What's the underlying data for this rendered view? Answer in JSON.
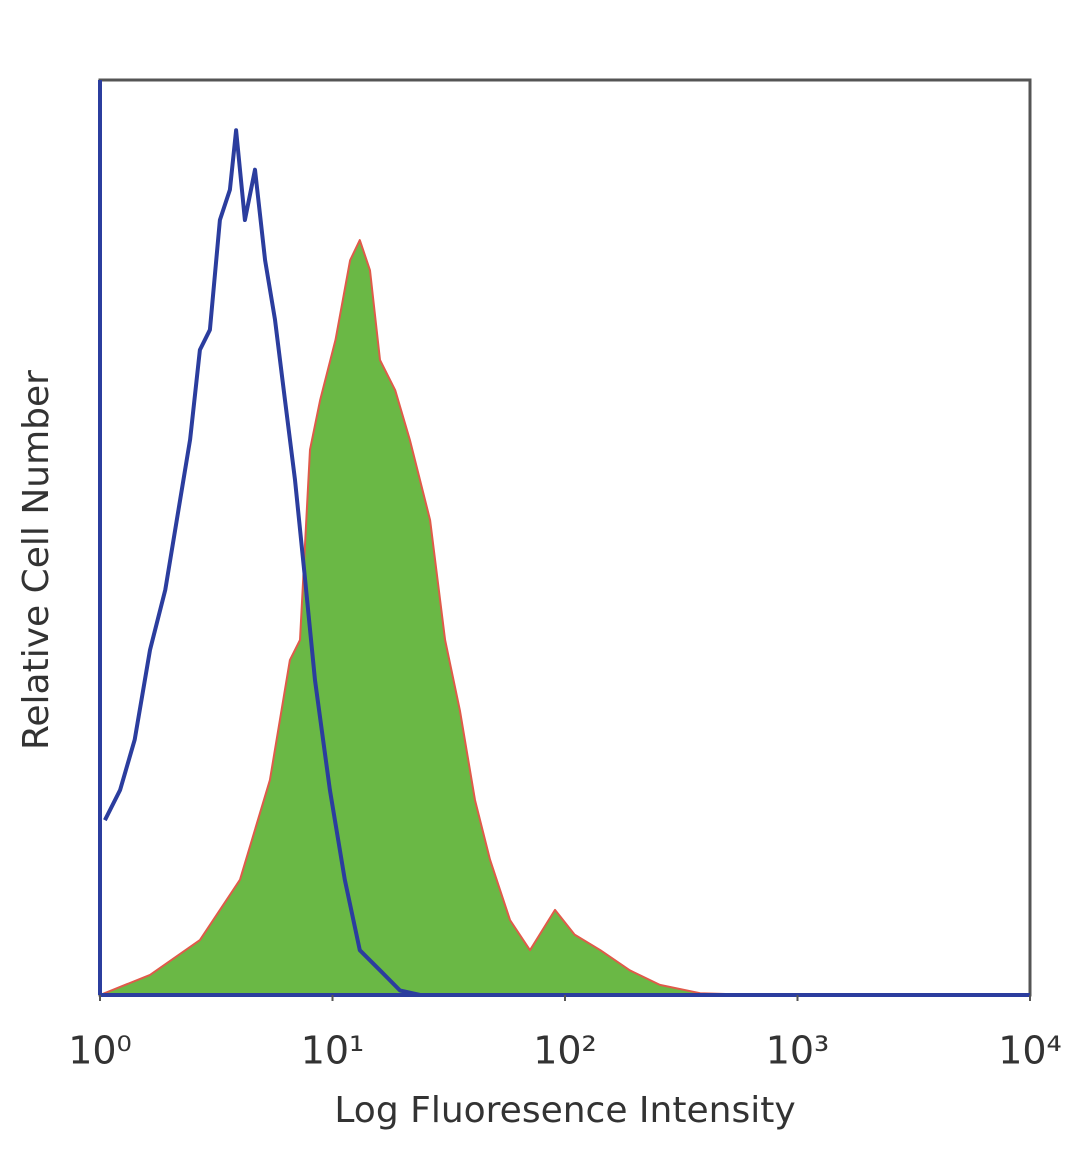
{
  "chart_data": {
    "type": "histogram-overlay",
    "x_label": "Log Fluoresence Intensity",
    "y_label": "Relative Cell Number",
    "x_scale": "log",
    "xlim": [
      1,
      10000
    ],
    "ylim": [
      0,
      100
    ],
    "xticks": [
      {
        "value": 1,
        "label": "10⁰"
      },
      {
        "value": 10,
        "label": "10¹"
      },
      {
        "value": 100,
        "label": "10²"
      },
      {
        "value": 1000,
        "label": "10³"
      },
      {
        "value": 10000,
        "label": "10⁴"
      }
    ],
    "series": [
      {
        "color": "#6ab845",
        "edge_color": "#e05a4a",
        "filled": true,
        "x": [
          1,
          1.64,
          2.69,
          4.0,
          5.38,
          6.56,
          7.25,
          8.0,
          8.84,
          10.3,
          11.9,
          13.1,
          14.5,
          16.0,
          18.6,
          21.5,
          26.3,
          30.5,
          35.3,
          41.0,
          47.6,
          58.0,
          70.7,
          90.6,
          110,
          142,
          190,
          256,
          381,
          690,
          1030
        ],
        "values": [
          0,
          2.2,
          6.0,
          12.6,
          23.5,
          36.6,
          38.8,
          59.6,
          65.0,
          71.6,
          80.3,
          82.5,
          79.2,
          69.4,
          66.1,
          60.7,
          51.9,
          38.8,
          31.1,
          21.3,
          14.8,
          8.2,
          4.9,
          9.3,
          6.6,
          4.9,
          2.7,
          1.1,
          0.2,
          0,
          0
        ]
      },
      {
        "color": "#2b3d9e",
        "filled": false,
        "x": [
          1.05,
          1.22,
          1.41,
          1.64,
          1.91,
          2.21,
          2.44,
          2.69,
          2.97,
          3.28,
          3.62,
          3.85,
          4.2,
          4.64,
          5.13,
          5.66,
          6.25,
          6.9,
          7.62,
          8.41,
          9.75,
          11.3,
          13.1,
          16.0,
          19.5,
          23.8
        ],
        "values": [
          19.1,
          22.4,
          27.9,
          37.7,
          44.3,
          54.1,
          60.7,
          70.5,
          72.7,
          84.7,
          88.0,
          94.5,
          84.7,
          90.2,
          80.3,
          73.8,
          65.0,
          56.3,
          45.4,
          34.4,
          22.4,
          12.6,
          4.9,
          2.7,
          0.5,
          0
        ]
      }
    ]
  }
}
